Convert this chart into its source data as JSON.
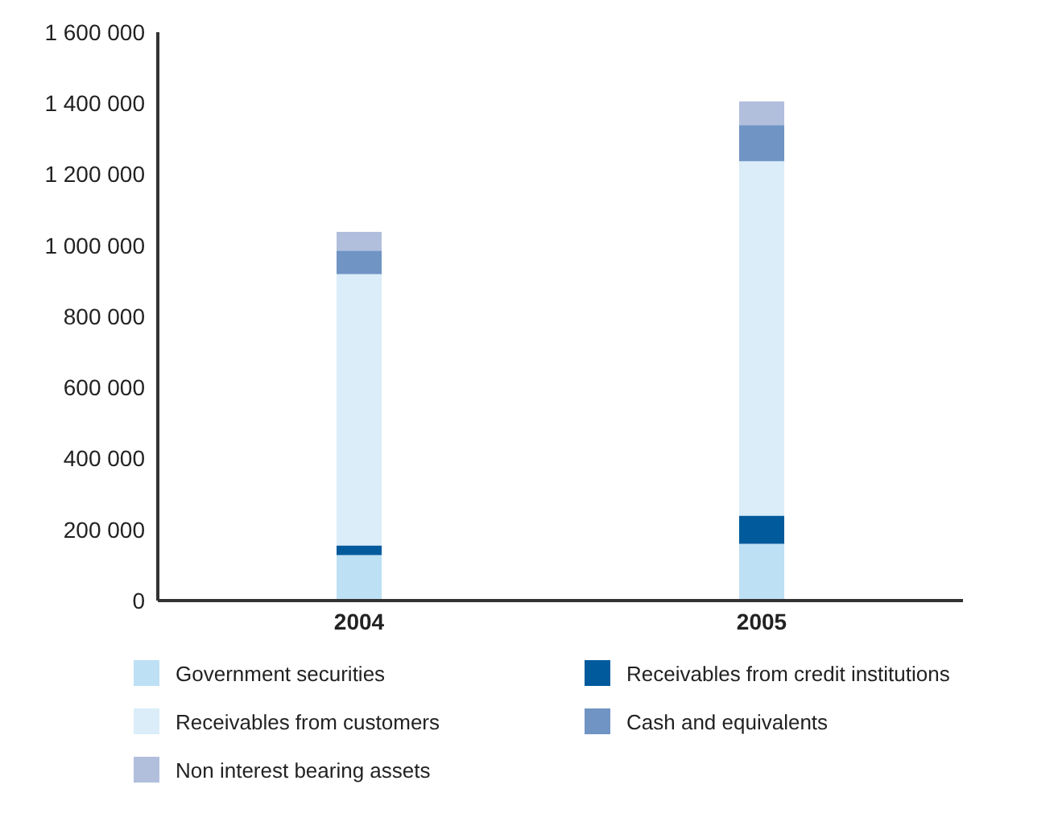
{
  "chart_data": {
    "type": "bar",
    "stacked": true,
    "categories": [
      "2004",
      "2005"
    ],
    "series": [
      {
        "name": "Government securities",
        "color": "#bde0f5",
        "values": [
          128000,
          160000
        ]
      },
      {
        "name": "Receivables from credit institutions",
        "color": "#005a9c",
        "values": [
          27000,
          79000
        ]
      },
      {
        "name": "Receivables from customers",
        "color": "#daedf9",
        "values": [
          764000,
          998000
        ]
      },
      {
        "name": "Cash and equivalents",
        "color": "#7094c4",
        "values": [
          66000,
          102000
        ]
      },
      {
        "name": "Non interest bearing assets",
        "color": "#b1bfdd",
        "values": [
          53000,
          66000
        ]
      }
    ],
    "ylim": [
      0,
      1600000
    ],
    "yticks": [
      {
        "value": 0,
        "label": "0"
      },
      {
        "value": 200000,
        "label": "200 000"
      },
      {
        "value": 400000,
        "label": "400 000"
      },
      {
        "value": 600000,
        "label": "600 000"
      },
      {
        "value": 800000,
        "label": "800 000"
      },
      {
        "value": 1000000,
        "label": "1 000 000"
      },
      {
        "value": 1200000,
        "label": "1 200 000"
      },
      {
        "value": 1400000,
        "label": "1 400 000"
      },
      {
        "value": 1600000,
        "label": "1 600 000"
      }
    ],
    "grid": false,
    "legend": "bottom"
  }
}
